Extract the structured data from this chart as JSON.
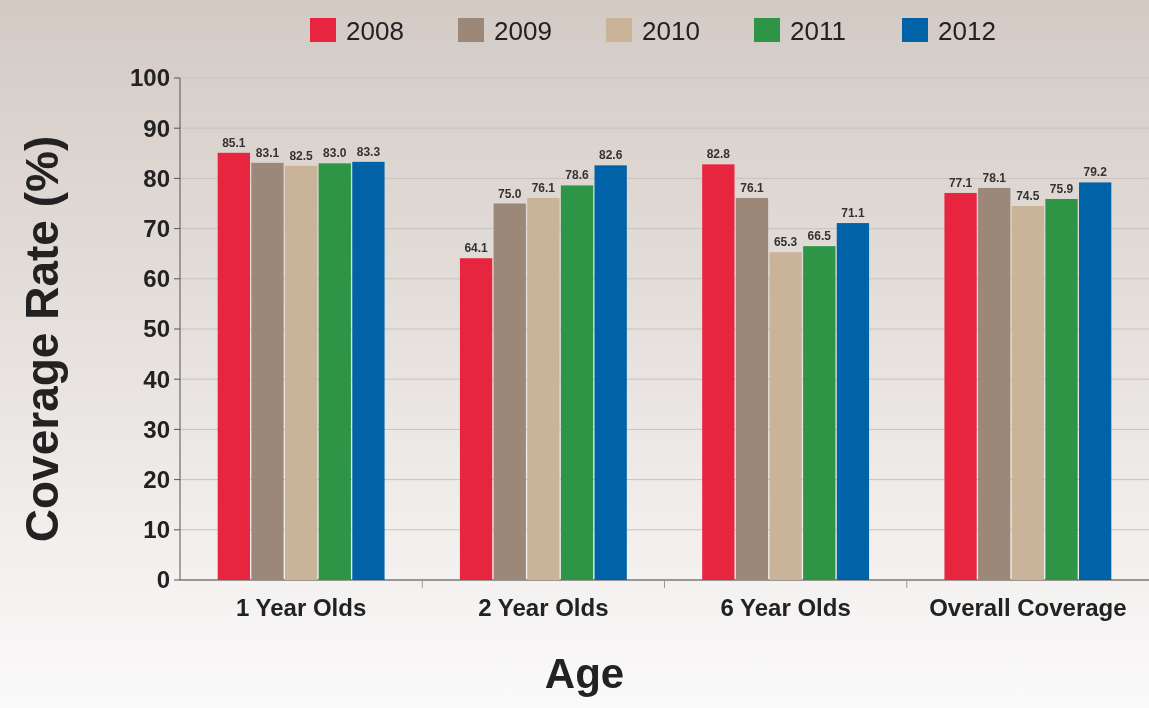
{
  "chart_data": {
    "type": "bar",
    "xlabel": "Age",
    "ylabel": "Coverage Rate (%)",
    "categories": [
      "1 Year Olds",
      "2 Year Olds",
      "6 Year Olds",
      "Overall Coverage"
    ],
    "series": [
      {
        "name": "2008",
        "color": "#e8253f",
        "values": [
          85.1,
          64.1,
          82.8,
          77.1
        ],
        "value_labels": [
          "85.1",
          "64.1",
          "82.8",
          "77.1"
        ]
      },
      {
        "name": "2009",
        "color": "#9b8878",
        "values": [
          83.1,
          75.0,
          76.1,
          78.1
        ],
        "value_labels": [
          "83.1",
          "75.0",
          "76.1",
          "78.1"
        ]
      },
      {
        "name": "2010",
        "color": "#c9b49a",
        "values": [
          82.5,
          76.1,
          65.3,
          74.5
        ],
        "value_labels": [
          "82.5",
          "76.1",
          "65.3",
          "74.5"
        ]
      },
      {
        "name": "2011",
        "color": "#2e9446",
        "values": [
          83.0,
          78.6,
          66.5,
          75.9
        ],
        "value_labels": [
          "83.0",
          "78.6",
          "66.5",
          "75.9"
        ]
      },
      {
        "name": "2012",
        "color": "#0063a8",
        "values": [
          83.3,
          82.6,
          71.1,
          79.2
        ],
        "value_labels": [
          "83.3",
          "82.6",
          "71.1",
          "79.2"
        ]
      }
    ],
    "ylim": [
      0,
      100
    ],
    "yticks": [
      0,
      10,
      20,
      30,
      40,
      50,
      60,
      70,
      80,
      90,
      100
    ],
    "grid": "y",
    "legend": "top"
  }
}
